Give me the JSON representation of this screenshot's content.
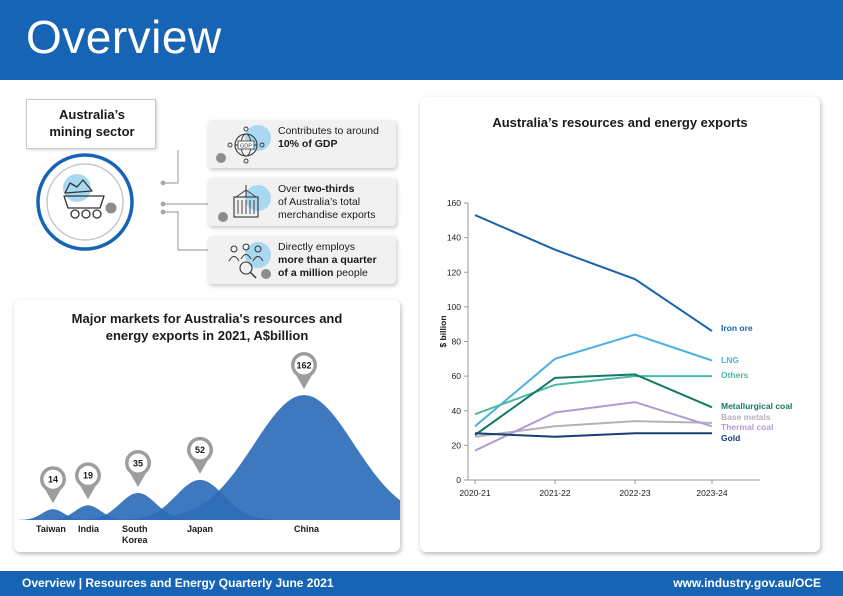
{
  "header": {
    "title": "Overview"
  },
  "footer": {
    "left": "Overview | Resources and Energy Quarterly June 2021",
    "right": "www.industry.gov.au/OCE"
  },
  "sector": {
    "title_line1": "Australia’s",
    "title_line2": "mining sector",
    "facts": [
      {
        "icon": "gdp-globe-icon",
        "pre1": "Contributes to around",
        "bold": "10% of GDP",
        "rest": ""
      },
      {
        "icon": "shipping-container-icon",
        "pre1": "Over ",
        "bold": "two-thirds",
        "rest": "of Australia’s total merchandise exports"
      },
      {
        "icon": "people-magnifier-icon",
        "pre1": "Directly employs",
        "bold": "more than a quarter of a million",
        "rest": " people"
      }
    ]
  },
  "markets": {
    "title_line1": "Major markets for Australia's resources and",
    "title_line2": "energy exports in 2021, A$billion",
    "color": "#2e6db8",
    "items": [
      {
        "name": "Taiwan",
        "value": 14
      },
      {
        "name": "India",
        "value": 19
      },
      {
        "name": "South Korea",
        "name_line1": "South",
        "name_line2": "Korea",
        "value": 35
      },
      {
        "name": "Japan",
        "value": 52
      },
      {
        "name": "China",
        "value": 162
      }
    ]
  },
  "chart_data": [
    {
      "type": "bar",
      "title": "Major markets for Australia's resources and energy exports in 2021, A$billion",
      "categories": [
        "Taiwan",
        "India",
        "South Korea",
        "Japan",
        "China"
      ],
      "values": [
        14,
        19,
        35,
        52,
        162
      ]
    },
    {
      "type": "line",
      "title": "Australia’s resources and energy exports",
      "ylabel": "$ billion",
      "ylim": [
        0,
        160
      ],
      "yticks": [
        0,
        20,
        40,
        60,
        80,
        100,
        120,
        140,
        160
      ],
      "x": [
        "2020-21",
        "2021-22",
        "2022-23",
        "2023-24"
      ],
      "grid": false,
      "series": [
        {
          "name": "Iron ore",
          "color": "#1a63ad",
          "values": [
            153,
            133,
            116,
            86
          ]
        },
        {
          "name": "LNG",
          "color": "#4fb0e0",
          "values": [
            31,
            70,
            84,
            69
          ]
        },
        {
          "name": "Others",
          "color": "#4bb8a4",
          "values": [
            38,
            55,
            60,
            60
          ]
        },
        {
          "name": "Metallurgical coal",
          "color": "#137a63",
          "values": [
            26,
            59,
            61,
            42
          ]
        },
        {
          "name": "Base metals",
          "color": "#b3b3b3",
          "values": [
            25,
            31,
            34,
            33
          ]
        },
        {
          "name": "Thermal coal",
          "color": "#b09cd2",
          "values": [
            17,
            39,
            45,
            31
          ]
        },
        {
          "name": "Gold",
          "color": "#163f78",
          "values": [
            27,
            25,
            27,
            27
          ]
        }
      ]
    }
  ]
}
